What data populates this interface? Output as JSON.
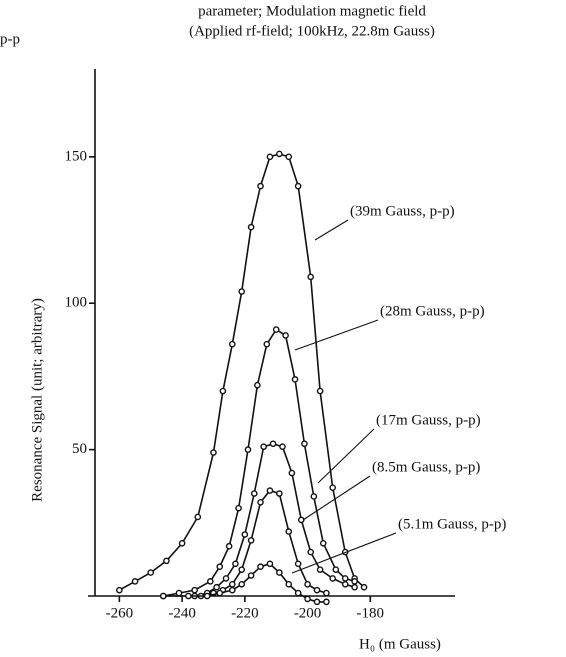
{
  "chart_data": {
    "type": "line",
    "title": "parameter; Modulation magnetic field",
    "subtitle": "(Applied rf-field; 100kHz, 22.8m Gauss)",
    "corner_label": "p-p",
    "y_label": "Resonance Signal  (unit; arbitrary)",
    "x_label": "H₀  (m Gauss)",
    "xlim": [
      -270,
      -153
    ],
    "ylim": [
      0,
      180
    ],
    "xticks": [
      -260,
      -240,
      -220,
      -200,
      -180
    ],
    "yticks": [
      50,
      100,
      150
    ],
    "series": [
      {
        "name": "(39m Gauss, p-p)",
        "color": "#111111",
        "x": [
          -260,
          -255,
          -250,
          -245,
          -240,
          -235,
          -230,
          -227,
          -224,
          -221,
          -218,
          -215,
          -212,
          -209,
          -206,
          -203,
          -199,
          -196,
          -192,
          -188,
          -185,
          -182
        ],
        "values": [
          2,
          5,
          8,
          12,
          18,
          27,
          49,
          70,
          86,
          104,
          126,
          140,
          150,
          151,
          150,
          140,
          109,
          70,
          37,
          15,
          6,
          3
        ]
      },
      {
        "name": "(28m Gauss, p-p)",
        "color": "#111111",
        "x": [
          -246,
          -241,
          -236,
          -231,
          -228,
          -225,
          -222,
          -219,
          -216,
          -213,
          -210,
          -207,
          -204,
          -201,
          -198,
          -195,
          -191,
          -188,
          -185
        ],
        "values": [
          0,
          1,
          2,
          5,
          10,
          17,
          30,
          50,
          72,
          86,
          91,
          89,
          74,
          52,
          34,
          18,
          9,
          6,
          5
        ]
      },
      {
        "name": "(17m Gauss, p-p)",
        "color": "#111111",
        "x": [
          -236,
          -232,
          -229,
          -226,
          -223,
          -220,
          -217,
          -214,
          -211,
          -208,
          -205,
          -202,
          -199,
          -196,
          -192,
          -188,
          -185
        ],
        "values": [
          0,
          1,
          3,
          6,
          11,
          21,
          35,
          51,
          52,
          51,
          42,
          26,
          15,
          9,
          6,
          4,
          3
        ]
      },
      {
        "name": "(8.5m Gauss, p-p)",
        "color": "#111111",
        "x": [
          -234,
          -230,
          -227,
          -224,
          -221,
          -218,
          -215,
          -212,
          -209,
          -206,
          -203,
          -200,
          -197,
          -194
        ],
        "values": [
          0,
          1,
          2,
          4,
          9,
          19,
          32,
          36,
          35,
          22,
          11,
          4,
          2,
          1
        ]
      },
      {
        "name": "(5.1m Gauss, p-p)",
        "color": "#111111",
        "x": [
          -246,
          -238,
          -232,
          -228,
          -224,
          -221,
          -218,
          -215,
          -212,
          -209,
          -206,
          -203,
          -200,
          -197,
          -194
        ],
        "values": [
          0,
          0,
          0,
          1,
          2,
          4,
          7,
          10,
          11,
          8,
          4,
          1,
          -1,
          -2,
          -2
        ]
      }
    ]
  }
}
